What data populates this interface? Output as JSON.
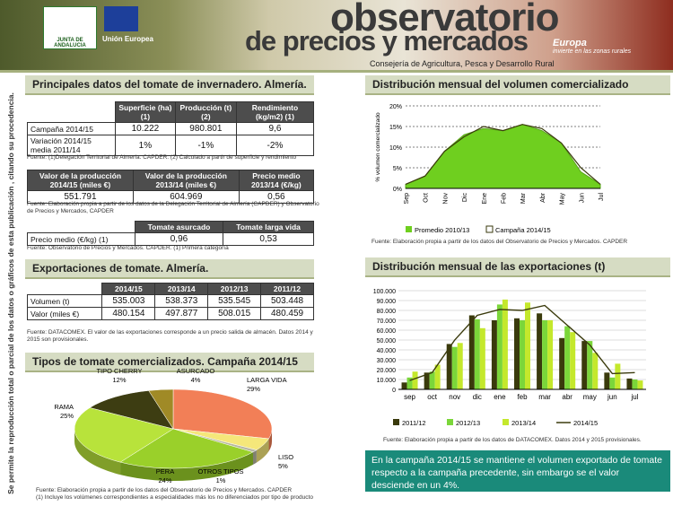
{
  "header": {
    "title_line1": "observatorio",
    "title_line2": "de precios y mercados",
    "subtitle": "Consejería de Agricultura, Pesca y Desarrollo Rural",
    "junta": "JUNTA DE ANDALUCIA",
    "ue": "Unión Europea",
    "europa": "Europa",
    "europa_tagline": "invierte en las zonas rurales"
  },
  "vertical_note": "Se permite la reproducción total o parcial de los datos o gráficos de esta publicación , citando su procedencia.",
  "sec1": {
    "title": "Principales datos del tomate de invernadero. Almería.",
    "t1_headers": [
      "",
      "Superficie (ha) (1)",
      "Producción (t) (2)",
      "Rendimiento (kg/m2) (1)"
    ],
    "t1_rows": [
      [
        "Campaña 2014/15",
        "10.222",
        "980.801",
        "9,6"
      ],
      [
        "Variación 2014/15 media 2011/14",
        "1%",
        "-1%",
        "-2%"
      ]
    ],
    "src1": "Fuente: (1)Delegación Territorial de Almería. CAPDER. (2) Calculado a partir de superficie y rendimiento",
    "t2_headers": [
      "Valor de la producción 2014/15 (miles €)",
      "Valor de la producción 2013/14 (miles €)",
      "Precio medio 2013/14 (€/kg)"
    ],
    "t2_row": [
      "551.791",
      "604.969",
      "0,56"
    ],
    "src2": "Fuente: Elaboración propia a partir de los datos de la Delegación Territorial de Almería (CAPDER) y Observatorio de Precios y Mercados, CAPDER",
    "t3_headers": [
      "",
      "Tomate asurcado",
      "Tomate larga vida"
    ],
    "t3_row": [
      "Precio medio (€/kg) (1)",
      "0,96",
      "0,53"
    ],
    "src3": "Fuente: Observatorio de Precios y Mercados. CAPDER. (1) Primera categoría"
  },
  "sec2": {
    "title": "Exportaciones de tomate. Almería.",
    "headers": [
      "",
      "2014/15",
      "2013/14",
      "2012/13",
      "2011/12"
    ],
    "rows": [
      [
        "Volumen (t)",
        "535.003",
        "538.373",
        "535.545",
        "503.448"
      ],
      [
        "Valor (miles €)",
        "480.154",
        "497.877",
        "508.015",
        "480.459"
      ]
    ],
    "src": "Fuente: DATACOMEX. El valor de las exportaciones corresponde a un precio salida de almacén. Datos 2014 y 2015 son provisionales."
  },
  "sec3": {
    "title": "Tipos de tomate comercializados. Campaña 2014/15",
    "src": "Fuente: Elaboración propia a partir de los datos del Observatorio de Precios y Mercados. CAPDER",
    "src2": "(1) Incluye los volúmenes correspondientes a especialidades más los no diferenciados por tipo de producto"
  },
  "sec4": {
    "title": "Distribución mensual del volumen comercializado",
    "src": "Fuente: Elaboración propia a partir de los datos del Observatorio de Precios y Mercados. CAPDER"
  },
  "sec5": {
    "title": "Distribución mensual de las exportaciones (t)",
    "src": "Fuente: Elaboración propia a partir de los datos de DATACOMEX. Datos 2014 y 2015 provisionales."
  },
  "note": "En la campaña 2014/15 se mantiene el volumen exportado de tomate respecto a la campaña precedente, sin embargo se el valor desciende en un 4%.",
  "colors": {
    "lime": "#6fcf1f",
    "olive": "#3a3a0c",
    "green2": "#7bd63a",
    "yellowgreen": "#c4e82c",
    "teal": "#1a8a7a"
  },
  "chart_data": [
    {
      "type": "area",
      "title": "Distribución mensual del volumen comercializado",
      "ylabel": "% volumen comercializado",
      "ylim": [
        0,
        20
      ],
      "categories": [
        "Sep",
        "Oct",
        "Nov",
        "Dic",
        "Ene",
        "Feb",
        "Mar",
        "Abr",
        "May",
        "Jun",
        "Jul"
      ],
      "series": [
        {
          "name": "Promedio 2010/13",
          "values": [
            1,
            3,
            9,
            13,
            14.5,
            14,
            15.5,
            14,
            11,
            4,
            1
          ]
        },
        {
          "name": "Campaña 2014/15",
          "values": [
            1,
            3,
            9,
            12.5,
            15,
            14,
            15.5,
            14.5,
            11,
            5,
            1
          ]
        }
      ]
    },
    {
      "type": "bar",
      "title": "Distribución mensual de las exportaciones (t)",
      "ylim": [
        0,
        100000
      ],
      "categories": [
        "sep",
        "oct",
        "nov",
        "dic",
        "ene",
        "feb",
        "mar",
        "abr",
        "may",
        "jun",
        "jul"
      ],
      "series": [
        {
          "name": "2011/12",
          "values": [
            7000,
            17000,
            46000,
            75000,
            70000,
            72000,
            77000,
            52000,
            49000,
            17000,
            11000
          ]
        },
        {
          "name": "2012/13",
          "values": [
            12000,
            18000,
            43000,
            71000,
            86000,
            70000,
            70000,
            64000,
            49000,
            12000,
            10000
          ]
        },
        {
          "name": "2013/14",
          "values": [
            18000,
            25000,
            47000,
            62000,
            91000,
            88000,
            70000,
            58000,
            37000,
            26000,
            9000
          ]
        },
        {
          "name": "2014/15",
          "type": "line",
          "values": [
            9000,
            17000,
            50000,
            75000,
            81000,
            80000,
            85000,
            65000,
            45000,
            16000,
            17000
          ]
        }
      ]
    },
    {
      "type": "pie",
      "title": "Tipos de tomate comercializados. Campaña 2014/15",
      "labels": [
        "LARGA VIDA",
        "LISO",
        "OTROS TIPOS",
        "PERA",
        "RAMA",
        "TIPO CHERRY",
        "ASURCADO"
      ],
      "pct": [
        "29%",
        "5%",
        "1%",
        "24%",
        "25%",
        "12%",
        "4%"
      ],
      "values": [
        29,
        5,
        1,
        24,
        25,
        12,
        4
      ],
      "colors": [
        "#f27f57",
        "#f5e77a",
        "#b8b8a0",
        "#9ad02a",
        "#b8e33b",
        "#3d3d12",
        "#a08a26"
      ]
    }
  ]
}
